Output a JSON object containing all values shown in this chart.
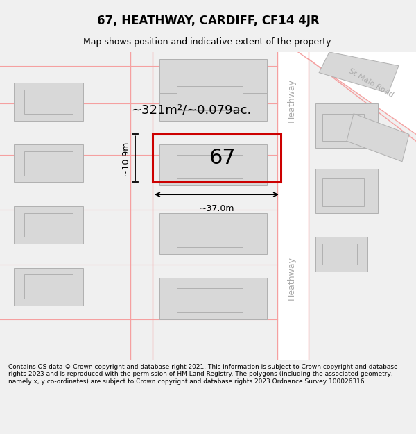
{
  "title_line1": "67, HEATHWAY, CARDIFF, CF14 4JR",
  "title_line2": "Map shows position and indicative extent of the property.",
  "footer_text": "Contains OS data © Crown copyright and database right 2021. This information is subject to Crown copyright and database rights 2023 and is reproduced with the permission of HM Land Registry. The polygons (including the associated geometry, namely x, y co-ordinates) are subject to Crown copyright and database rights 2023 Ordnance Survey 100026316.",
  "bg_color": "#f5f5f5",
  "map_bg": "#ffffff",
  "plot_color": "#cc0000",
  "road_color": "#f5a0a0",
  "building_color": "#d8d8d8",
  "building_edge": "#b0b0b0",
  "road_label_color": "#808080",
  "area_text": "~321m²/~0.079ac.",
  "width_text": "~37.0m",
  "height_text": "~10.9m",
  "plot_number": "67"
}
